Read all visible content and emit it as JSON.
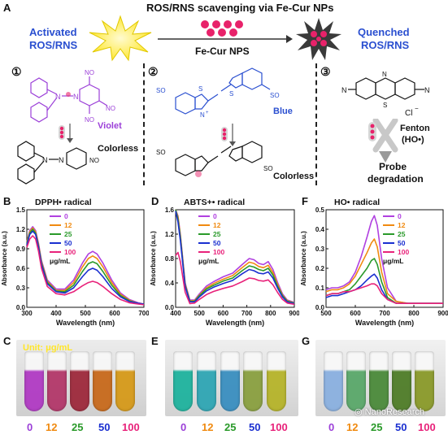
{
  "panel_a": {
    "letter": "A",
    "title": "ROS/RNS scavenging via Fe-Cur NPs",
    "activated_label_1": "Activated",
    "activated_label_2": "ROS/RNS",
    "arrow_label": "Fe-Cur NPS",
    "quenched_label_1": "Quenched",
    "quenched_label_2": "ROS/RNS",
    "section_1_num": "①",
    "section_2_num": "②",
    "section_3_num": "③",
    "dpph_color": "Violet",
    "dpph_reduced": "Colorless",
    "abts_color": "Blue",
    "abts_reduced": "Colorless",
    "fenton_1": "Fenton",
    "fenton_2": "(HO•)",
    "probe_1": "Probe",
    "probe_2": "degradation",
    "chem_labels": {
      "no2": "NO",
      "no2_sub": "2",
      "n": "N",
      "so3h": "SO",
      "so3h_sub": "3",
      "so3h_h": "H",
      "s": "S",
      "nplus": "N",
      "plus": "+",
      "cl": "Cl",
      "cl_charge": "−"
    }
  },
  "colors": {
    "c0": "#b040e0",
    "c12": "#f08a10",
    "c25": "#2a9a2a",
    "c50": "#1a2fd0",
    "c100": "#e8227a",
    "star_yellow": "#ffe629",
    "nanoparticle": "#e8226a"
  },
  "legend": {
    "concentrations": [
      "0",
      "12",
      "25",
      "50",
      "100"
    ],
    "unit": "μg/mL"
  },
  "chart_data": [
    {
      "panel": "B",
      "type": "line",
      "title": "DPPH• radical",
      "xlabel": "Wavelength (nm)",
      "ylabel": "Absorbance (a.u.)",
      "xlim": [
        300,
        700
      ],
      "ylim": [
        0.0,
        1.5
      ],
      "xticks": [
        "300",
        "400",
        "500",
        "600",
        "700"
      ],
      "yticks": [
        "0.0",
        "0.3",
        "0.6",
        "0.9",
        "1.2",
        "1.5"
      ],
      "x": [
        300,
        310,
        320,
        330,
        340,
        350,
        370,
        400,
        430,
        460,
        490,
        510,
        525,
        540,
        560,
        590,
        620,
        650,
        680,
        700
      ],
      "series": [
        {
          "name": "0",
          "values": [
            1.0,
            1.18,
            1.24,
            1.18,
            0.98,
            0.72,
            0.42,
            0.28,
            0.28,
            0.42,
            0.68,
            0.82,
            0.86,
            0.82,
            0.68,
            0.42,
            0.22,
            0.12,
            0.07,
            0.05
          ]
        },
        {
          "name": "12",
          "values": [
            1.0,
            1.16,
            1.22,
            1.16,
            0.96,
            0.7,
            0.4,
            0.26,
            0.26,
            0.38,
            0.62,
            0.75,
            0.79,
            0.75,
            0.62,
            0.38,
            0.2,
            0.11,
            0.06,
            0.05
          ]
        },
        {
          "name": "25",
          "values": [
            0.98,
            1.14,
            1.2,
            1.14,
            0.94,
            0.68,
            0.38,
            0.25,
            0.24,
            0.34,
            0.55,
            0.67,
            0.7,
            0.67,
            0.55,
            0.34,
            0.18,
            0.1,
            0.06,
            0.05
          ]
        },
        {
          "name": "50",
          "values": [
            0.96,
            1.12,
            1.17,
            1.12,
            0.92,
            0.66,
            0.36,
            0.24,
            0.22,
            0.3,
            0.47,
            0.57,
            0.6,
            0.57,
            0.47,
            0.29,
            0.16,
            0.09,
            0.06,
            0.05
          ]
        },
        {
          "name": "100",
          "values": [
            0.92,
            1.05,
            1.1,
            1.05,
            0.86,
            0.6,
            0.32,
            0.21,
            0.19,
            0.24,
            0.33,
            0.38,
            0.4,
            0.38,
            0.32,
            0.21,
            0.12,
            0.07,
            0.05,
            0.04
          ]
        }
      ]
    },
    {
      "panel": "D",
      "type": "line",
      "title": "ABTS+• radical",
      "xlabel": "Wavelength (nm)",
      "ylabel": "Absorbance (a.u.)",
      "xlim": [
        400,
        900
      ],
      "ylim": [
        0.0,
        1.6
      ],
      "xticks": [
        "400",
        "500",
        "600",
        "700",
        "800",
        "900"
      ],
      "yticks": [
        "0.0",
        "0.4",
        "0.8",
        "1.2",
        "1.6"
      ],
      "x": [
        400,
        410,
        420,
        440,
        460,
        480,
        500,
        530,
        560,
        600,
        640,
        680,
        710,
        730,
        750,
        770,
        790,
        810,
        830,
        850,
        870,
        900
      ],
      "series": [
        {
          "name": "0",
          "values": [
            1.6,
            1.5,
            1.2,
            0.4,
            0.12,
            0.12,
            0.22,
            0.35,
            0.42,
            0.5,
            0.56,
            0.7,
            0.8,
            0.78,
            0.72,
            0.7,
            0.75,
            0.62,
            0.4,
            0.22,
            0.12,
            0.08
          ]
        },
        {
          "name": "12",
          "values": [
            1.6,
            1.48,
            1.18,
            0.38,
            0.11,
            0.11,
            0.2,
            0.32,
            0.39,
            0.46,
            0.52,
            0.65,
            0.74,
            0.72,
            0.67,
            0.65,
            0.69,
            0.57,
            0.37,
            0.2,
            0.11,
            0.07
          ]
        },
        {
          "name": "25",
          "values": [
            1.6,
            1.45,
            1.15,
            0.36,
            0.1,
            0.1,
            0.19,
            0.3,
            0.36,
            0.43,
            0.48,
            0.6,
            0.68,
            0.66,
            0.62,
            0.6,
            0.64,
            0.53,
            0.34,
            0.19,
            0.1,
            0.07
          ]
        },
        {
          "name": "50",
          "values": [
            1.58,
            1.4,
            1.1,
            0.34,
            0.09,
            0.09,
            0.17,
            0.27,
            0.33,
            0.39,
            0.44,
            0.55,
            0.62,
            0.6,
            0.56,
            0.55,
            0.58,
            0.48,
            0.31,
            0.17,
            0.09,
            0.06
          ]
        },
        {
          "name": "100",
          "values": [
            0.85,
            0.9,
            0.75,
            0.25,
            0.06,
            0.07,
            0.13,
            0.21,
            0.26,
            0.31,
            0.35,
            0.42,
            0.48,
            0.47,
            0.44,
            0.43,
            0.45,
            0.37,
            0.24,
            0.13,
            0.07,
            0.05
          ]
        }
      ]
    },
    {
      "panel": "F",
      "type": "line",
      "title": "HO• radical",
      "xlabel": "Wavelength (nm)",
      "ylabel": "Absorbance (a.u.)",
      "xlim": [
        500,
        900
      ],
      "ylim": [
        0.0,
        0.5
      ],
      "xticks": [
        "500",
        "600",
        "700",
        "800",
        "900"
      ],
      "yticks": [
        "0.0",
        "0.1",
        "0.2",
        "0.3",
        "0.4",
        "0.5"
      ],
      "x": [
        500,
        520,
        540,
        560,
        580,
        600,
        620,
        640,
        655,
        665,
        675,
        690,
        710,
        740,
        780,
        820,
        860,
        900
      ],
      "series": [
        {
          "name": "0",
          "values": [
            0.09,
            0.1,
            0.1,
            0.11,
            0.13,
            0.18,
            0.26,
            0.36,
            0.44,
            0.47,
            0.42,
            0.25,
            0.1,
            0.03,
            0.02,
            0.02,
            0.02,
            0.02
          ]
        },
        {
          "name": "12",
          "values": [
            0.08,
            0.09,
            0.09,
            0.1,
            0.12,
            0.16,
            0.22,
            0.28,
            0.33,
            0.35,
            0.31,
            0.18,
            0.07,
            0.03,
            0.02,
            0.02,
            0.02,
            0.02
          ]
        },
        {
          "name": "25",
          "values": [
            0.06,
            0.07,
            0.07,
            0.08,
            0.09,
            0.12,
            0.16,
            0.2,
            0.24,
            0.25,
            0.22,
            0.13,
            0.05,
            0.02,
            0.02,
            0.02,
            0.02,
            0.02
          ]
        },
        {
          "name": "50",
          "values": [
            0.05,
            0.06,
            0.06,
            0.07,
            0.08,
            0.09,
            0.11,
            0.14,
            0.16,
            0.17,
            0.15,
            0.09,
            0.04,
            0.02,
            0.02,
            0.02,
            0.02,
            0.02
          ]
        },
        {
          "name": "100",
          "values": [
            0.06,
            0.07,
            0.07,
            0.08,
            0.08,
            0.09,
            0.1,
            0.11,
            0.12,
            0.12,
            0.11,
            0.07,
            0.04,
            0.02,
            0.02,
            0.02,
            0.02,
            0.02
          ]
        }
      ]
    }
  ],
  "panel_b": {
    "letter": "B"
  },
  "panel_d": {
    "letter": "D"
  },
  "panel_f": {
    "letter": "F"
  },
  "photos": [
    {
      "letter": "C",
      "overlay_text": "Unit: μg/mL",
      "tube_colors": [
        "#b13bc4",
        "#b3386a",
        "#9e2a3c",
        "#c86a1c",
        "#d69a1a"
      ]
    },
    {
      "letter": "E",
      "overlay_text": "",
      "tube_colors": [
        "#1fb39e",
        "#2fa6b4",
        "#3a8fc0",
        "#8aa040",
        "#b6b42a"
      ]
    },
    {
      "letter": "G",
      "overlay_text": "",
      "tube_colors": [
        "#8ab0e0",
        "#5aa86a",
        "#4b8a3a",
        "#4f7d28",
        "#8a9a2a"
      ]
    }
  ],
  "watermark": "NanoResearch"
}
